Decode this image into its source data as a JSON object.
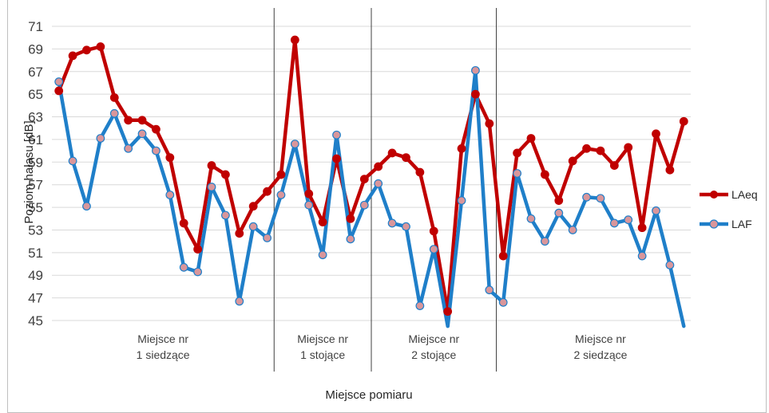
{
  "chart_data": {
    "type": "line",
    "title": "",
    "xlabel": "Miejsce pomiaru",
    "ylabel": "Poziom hałasu [dB]",
    "ylim": [
      45,
      71
    ],
    "yticks": [
      45,
      47,
      49,
      51,
      53,
      55,
      57,
      59,
      61,
      63,
      65,
      67,
      69,
      71
    ],
    "grid": true,
    "legend_position": "right",
    "groups": [
      {
        "line1": "Miejsce nr",
        "line2": "1 siedzące",
        "start": 0,
        "end": 16
      },
      {
        "line1": "Miejsce nr",
        "line2": "1 stojące",
        "start": 16,
        "end": 23
      },
      {
        "line1": "Miejsce nr",
        "line2": "2 stojące",
        "start": 23,
        "end": 32
      },
      {
        "line1": "Miejsce nr",
        "line2": "2 siedzące",
        "start": 32,
        "end": 47
      }
    ],
    "series": [
      {
        "name": "LAeq",
        "color": "#c00000",
        "marker_color": "#c00000",
        "values": [
          65.3,
          68.4,
          68.9,
          69.2,
          64.7,
          62.7,
          62.7,
          61.9,
          59.4,
          53.6,
          51.3,
          58.7,
          57.9,
          52.7,
          55.1,
          56.4,
          57.9,
          69.8,
          56.2,
          53.7,
          59.3,
          54.0,
          57.5,
          58.6,
          59.8,
          59.4,
          58.1,
          52.9,
          45.8,
          60.2,
          65.0,
          62.4,
          50.7,
          59.8,
          61.1,
          57.9,
          55.6,
          59.1,
          60.2,
          60.0,
          58.7,
          60.3,
          53.2,
          61.5,
          58.3,
          62.6
        ]
      },
      {
        "name": "LAF",
        "color": "#1f7fc9",
        "marker_color": "#d9969b",
        "values": [
          66.1,
          59.1,
          55.1,
          61.1,
          63.3,
          60.2,
          61.5,
          60.0,
          56.1,
          49.7,
          49.3,
          56.8,
          54.3,
          46.7,
          53.3,
          52.3,
          56.1,
          60.6,
          55.2,
          50.8,
          61.4,
          52.2,
          55.2,
          57.1,
          53.6,
          53.3,
          46.3,
          51.3,
          44.5,
          55.6,
          67.1,
          47.7,
          46.6,
          58.0,
          54.0,
          52.0,
          54.5,
          53.0,
          55.9,
          55.8,
          53.6,
          53.9,
          50.7,
          54.7,
          49.9,
          44.5
        ]
      }
    ]
  }
}
